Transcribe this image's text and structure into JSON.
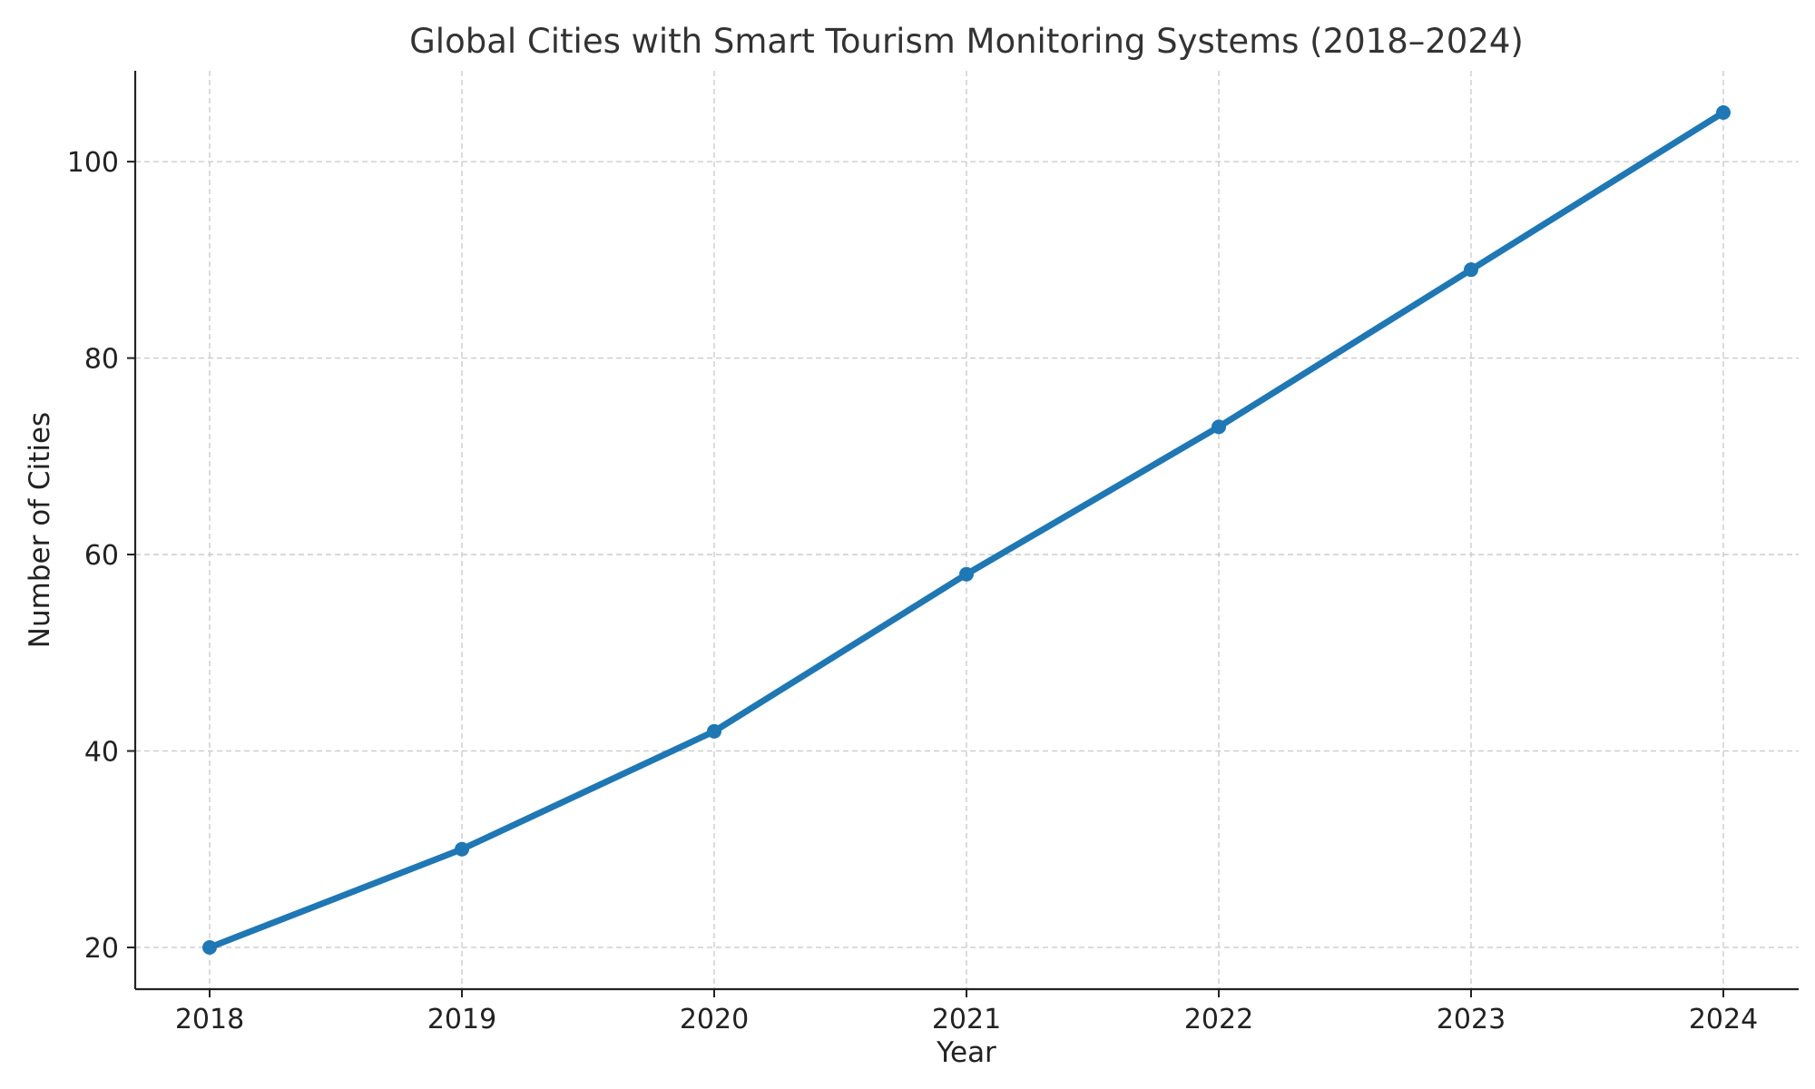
{
  "chart_data": {
    "type": "line",
    "title": "Global Cities with Smart Tourism Monitoring Systems (2018–2024)",
    "xlabel": "Year",
    "ylabel": "Number of Cities",
    "x": [
      "2018",
      "2019",
      "2020",
      "2021",
      "2022",
      "2023",
      "2024"
    ],
    "series": [
      {
        "values": [
          20,
          30,
          42,
          58,
          73,
          89,
          105
        ],
        "color": "#1f77b4"
      }
    ],
    "yticks": [
      "20",
      "40",
      "60",
      "80",
      "100"
    ],
    "ylim": [
      15.75,
      109.25
    ],
    "grid": true,
    "legend": "none"
  }
}
